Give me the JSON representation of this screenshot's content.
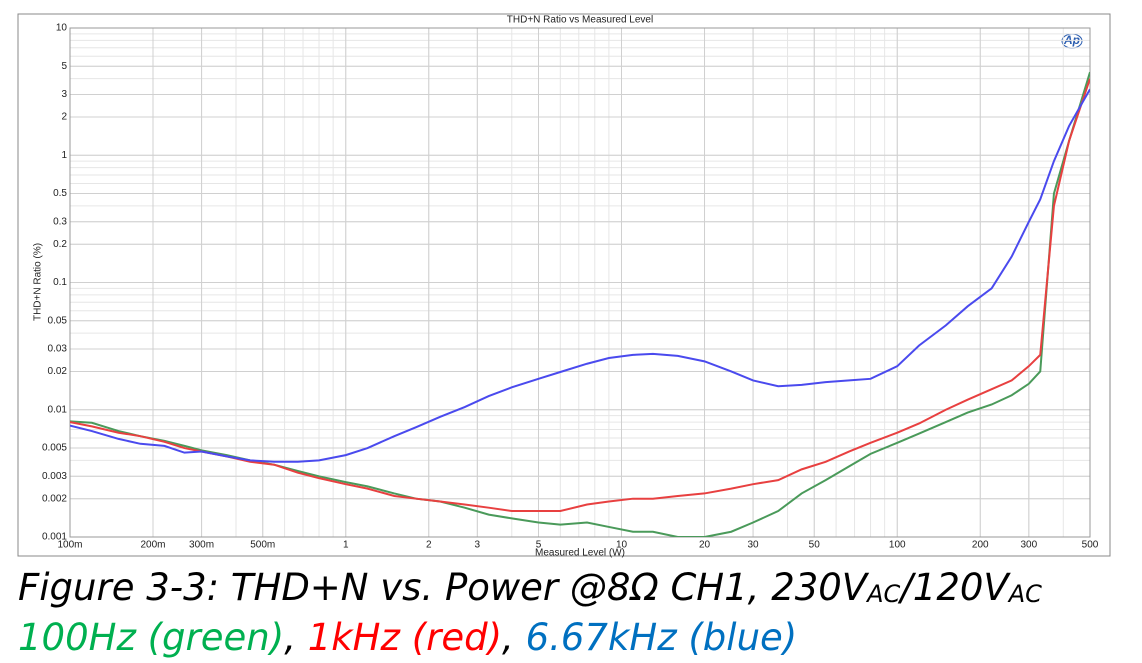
{
  "chart_data": {
    "type": "line",
    "title": "THD+N Ratio vs Measured Level",
    "xlabel": "Measured Level (W)",
    "ylabel": "THD+N Ratio (%)",
    "logo": "Ap",
    "log_x": true,
    "log_y": true,
    "grid": true,
    "xlim": [
      0.1,
      500
    ],
    "ylim": [
      0.001,
      10
    ],
    "xticks": [
      {
        "value": 0.1,
        "label": "100m"
      },
      {
        "value": 0.2,
        "label": "200m"
      },
      {
        "value": 0.3,
        "label": "300m"
      },
      {
        "value": 0.5,
        "label": "500m"
      },
      1,
      2,
      3,
      5,
      10,
      20,
      30,
      50,
      100,
      200,
      300,
      500
    ],
    "yticks": [
      10,
      5,
      3,
      2,
      1,
      0.5,
      0.3,
      0.2,
      0.1,
      0.05,
      0.03,
      0.02,
      0.01,
      0.005,
      0.003,
      0.002,
      0.001
    ],
    "x": [
      0.1,
      0.12,
      0.15,
      0.18,
      0.22,
      0.26,
      0.3,
      0.37,
      0.45,
      0.55,
      0.67,
      0.8,
      1,
      1.2,
      1.5,
      1.8,
      2.2,
      2.7,
      3.3,
      4,
      5,
      6,
      7.5,
      9,
      11,
      13,
      16,
      20,
      25,
      30,
      37,
      45,
      55,
      67,
      80,
      100,
      120,
      150,
      180,
      220,
      260,
      300,
      330,
      370,
      420,
      500
    ],
    "series": [
      {
        "color": "#4a9a5a",
        "values": [
          0.0081,
          0.0079,
          0.0068,
          0.0062,
          0.0057,
          0.0052,
          0.0048,
          0.0044,
          0.004,
          0.0037,
          0.0033,
          0.003,
          0.0027,
          0.0025,
          0.0022,
          0.002,
          0.0019,
          0.0017,
          0.0015,
          0.0014,
          0.0013,
          0.00125,
          0.0013,
          0.0012,
          0.0011,
          0.0011,
          0.001,
          0.001,
          0.0011,
          0.0013,
          0.0016,
          0.0022,
          0.0028,
          0.0036,
          0.0045,
          0.0055,
          0.0065,
          0.008,
          0.0095,
          0.011,
          0.013,
          0.016,
          0.02,
          0.5,
          1.3,
          4.5
        ]
      },
      {
        "color": "#e84040",
        "values": [
          0.008,
          0.0074,
          0.0066,
          0.0062,
          0.0056,
          0.005,
          0.0047,
          0.0043,
          0.0039,
          0.0037,
          0.0032,
          0.0029,
          0.0026,
          0.0024,
          0.0021,
          0.002,
          0.0019,
          0.0018,
          0.0017,
          0.0016,
          0.0016,
          0.0016,
          0.0018,
          0.0019,
          0.002,
          0.002,
          0.0021,
          0.0022,
          0.0024,
          0.0026,
          0.0028,
          0.0034,
          0.0039,
          0.0047,
          0.0055,
          0.0066,
          0.0078,
          0.01,
          0.012,
          0.0145,
          0.017,
          0.022,
          0.027,
          0.4,
          1.3,
          4
        ]
      },
      {
        "color": "#4a4aee",
        "values": [
          0.0075,
          0.0068,
          0.0059,
          0.0054,
          0.0052,
          0.0046,
          0.0047,
          0.0043,
          0.004,
          0.0039,
          0.0039,
          0.004,
          0.0044,
          0.005,
          0.0062,
          0.0073,
          0.0088,
          0.0105,
          0.0128,
          0.015,
          0.0175,
          0.0198,
          0.023,
          0.0255,
          0.027,
          0.0275,
          0.0265,
          0.024,
          0.02,
          0.017,
          0.0153,
          0.0157,
          0.0165,
          0.017,
          0.0175,
          0.022,
          0.032,
          0.046,
          0.065,
          0.09,
          0.16,
          0.3,
          0.45,
          0.9,
          1.7,
          3.3
        ]
      }
    ],
    "caption": {
      "line1": [
        "Figure 3-3: THD+N vs. Power @8Ω CH1, 230V",
        "AC",
        "/120V",
        "AC"
      ],
      "line2": [
        {
          "text": "100Hz (green)",
          "color": "#00b050"
        },
        {
          "text": ", ",
          "color": "#000000"
        },
        {
          "text": "1kHz (red)",
          "color": "#ff0000"
        },
        {
          "text": ", ",
          "color": "#000000"
        },
        {
          "text": "6.67kHz (blue)",
          "color": "#0070c0"
        }
      ]
    }
  }
}
